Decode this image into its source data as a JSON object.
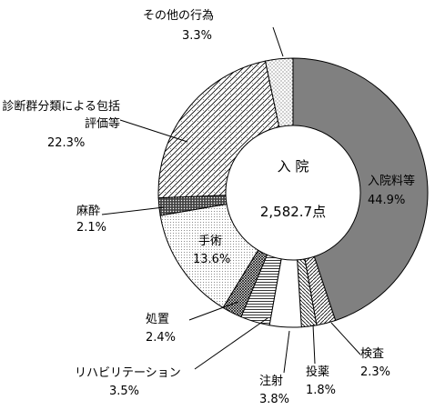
{
  "chart_data": {
    "type": "donut",
    "center_title": "入 院",
    "center_value": "2,582.7点",
    "categories": [
      "入院料等",
      "検査",
      "投薬",
      "注射",
      "リハビリテーション",
      "処置",
      "手術",
      "麻酔",
      "診断群分類による包括評価等",
      "その他の行為"
    ],
    "values": [
      44.9,
      2.3,
      1.8,
      3.8,
      3.5,
      2.4,
      13.6,
      2.1,
      22.3,
      3.3
    ],
    "value_labels": [
      "44.9%",
      "2.3%",
      "1.8%",
      "3.8%",
      "3.5%",
      "2.4%",
      "13.6%",
      "2.1%",
      "22.3%",
      "3.3%"
    ],
    "colors": [
      "#808080",
      "#ffffff",
      "#ffffff",
      "#ffffff",
      "#ffffff",
      "#ffffff",
      "#ffffff",
      "#ffffff",
      "#ffffff",
      "#ffffff"
    ]
  }
}
